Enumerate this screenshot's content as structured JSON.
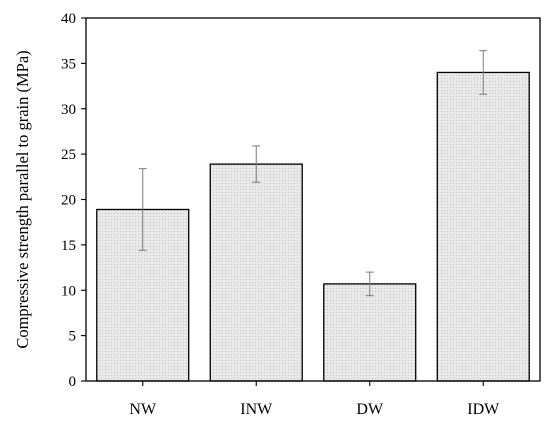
{
  "chart_data": {
    "type": "bar",
    "categories": [
      "NW",
      "INW",
      "DW",
      "IDW"
    ],
    "series": [
      {
        "values": [
          18.9,
          23.9,
          10.7,
          34.0
        ],
        "error": [
          4.5,
          2.0,
          1.3,
          2.4
        ]
      }
    ],
    "xlabel": "",
    "ylabel": "Compressive strength parallel to grain (MPa)",
    "ylim": [
      0,
      40
    ],
    "yticks": [
      0,
      5,
      10,
      15,
      20,
      25,
      30,
      35,
      40
    ],
    "grid": false,
    "bar_fill": "#e9e9e9",
    "bar_pattern_dot": "#c4c4c4",
    "bar_edge": "#000000",
    "error_bar_color": "#7a7a7a"
  }
}
